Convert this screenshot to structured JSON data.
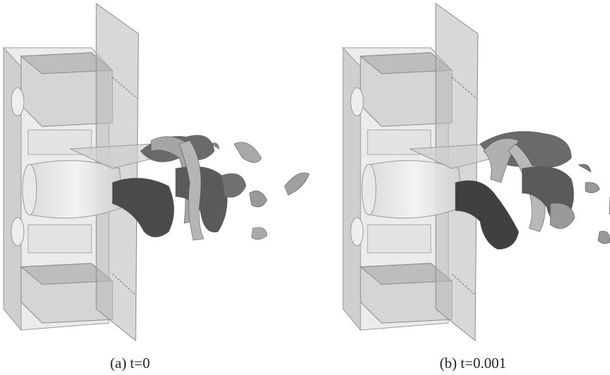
{
  "figure": {
    "panels": [
      {
        "caption": "(a) t=0"
      },
      {
        "caption": "(b) t=0.001"
      }
    ]
  }
}
